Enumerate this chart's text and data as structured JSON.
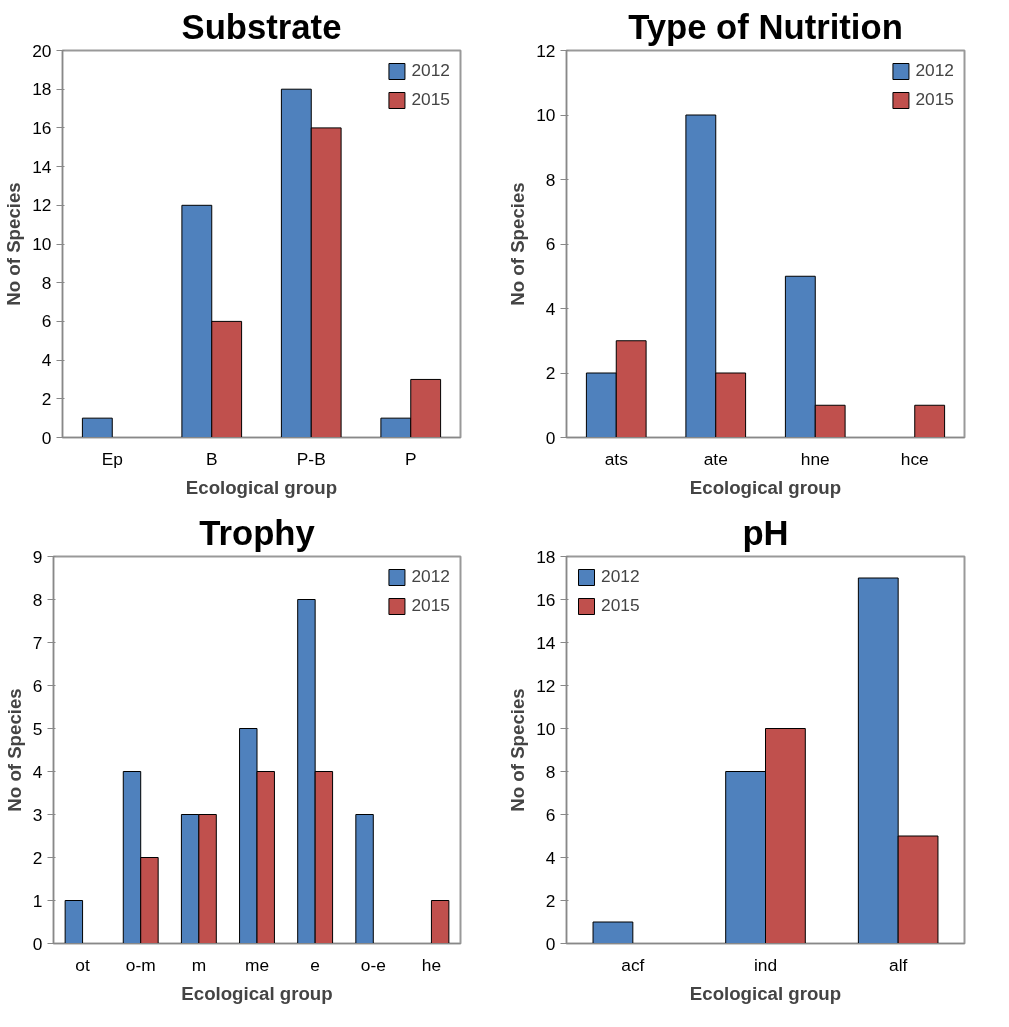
{
  "chart_data": [
    {
      "type": "bar",
      "title": "Substrate",
      "xlabel": "Ecological group",
      "ylabel": "No of Species",
      "categories": [
        "Ep",
        "B",
        "P-B",
        "P"
      ],
      "series": [
        {
          "name": "2012",
          "color": "#4f81bd",
          "values": [
            1,
            12,
            18,
            1
          ]
        },
        {
          "name": "2015",
          "color": "#c0504d",
          "values": [
            null,
            6,
            16,
            3
          ]
        }
      ],
      "ylim": [
        0,
        20
      ],
      "yticks": [
        0,
        2,
        4,
        6,
        8,
        10,
        12,
        14,
        16,
        18,
        20
      ],
      "grid": false,
      "legend": "top right"
    },
    {
      "type": "bar",
      "title": "Type of Nutrition",
      "xlabel": "Ecological group",
      "ylabel": "No of Species",
      "categories": [
        "ats",
        "ate",
        "hne",
        "hce"
      ],
      "series": [
        {
          "name": "2012",
          "color": "#4f81bd",
          "values": [
            2,
            10,
            5,
            null
          ]
        },
        {
          "name": "2015",
          "color": "#c0504d",
          "values": [
            3,
            2,
            1,
            1
          ]
        }
      ],
      "ylim": [
        0,
        12
      ],
      "yticks": [
        0,
        2,
        4,
        6,
        8,
        10,
        12
      ],
      "grid": false,
      "legend": "top right"
    },
    {
      "type": "bar",
      "title": "Trophy",
      "xlabel": "Ecological group",
      "ylabel": "No of Species",
      "categories": [
        "ot",
        "o-m",
        "m",
        "me",
        "e",
        "o-e",
        "he"
      ],
      "series": [
        {
          "name": "2012",
          "color": "#4f81bd",
          "values": [
            1,
            4,
            3,
            5,
            8,
            3,
            null
          ]
        },
        {
          "name": "2015",
          "color": "#c0504d",
          "values": [
            null,
            2,
            3,
            4,
            4,
            null,
            1
          ]
        }
      ],
      "ylim": [
        0,
        9
      ],
      "yticks": [
        0,
        1,
        2,
        3,
        4,
        5,
        6,
        7,
        8,
        9
      ],
      "grid": false,
      "legend": "top right"
    },
    {
      "type": "bar",
      "title": "pH",
      "xlabel": "Ecological group",
      "ylabel": "No of Species",
      "categories": [
        "acf",
        "ind",
        "alf"
      ],
      "series": [
        {
          "name": "2012",
          "color": "#4f81bd",
          "values": [
            1,
            8,
            17
          ]
        },
        {
          "name": "2015",
          "color": "#c0504d",
          "values": [
            null,
            10,
            5
          ]
        }
      ],
      "ylim": [
        0,
        18
      ],
      "yticks": [
        0,
        2,
        4,
        6,
        8,
        10,
        12,
        14,
        16,
        18
      ],
      "grid": false,
      "legend": "top left"
    }
  ]
}
